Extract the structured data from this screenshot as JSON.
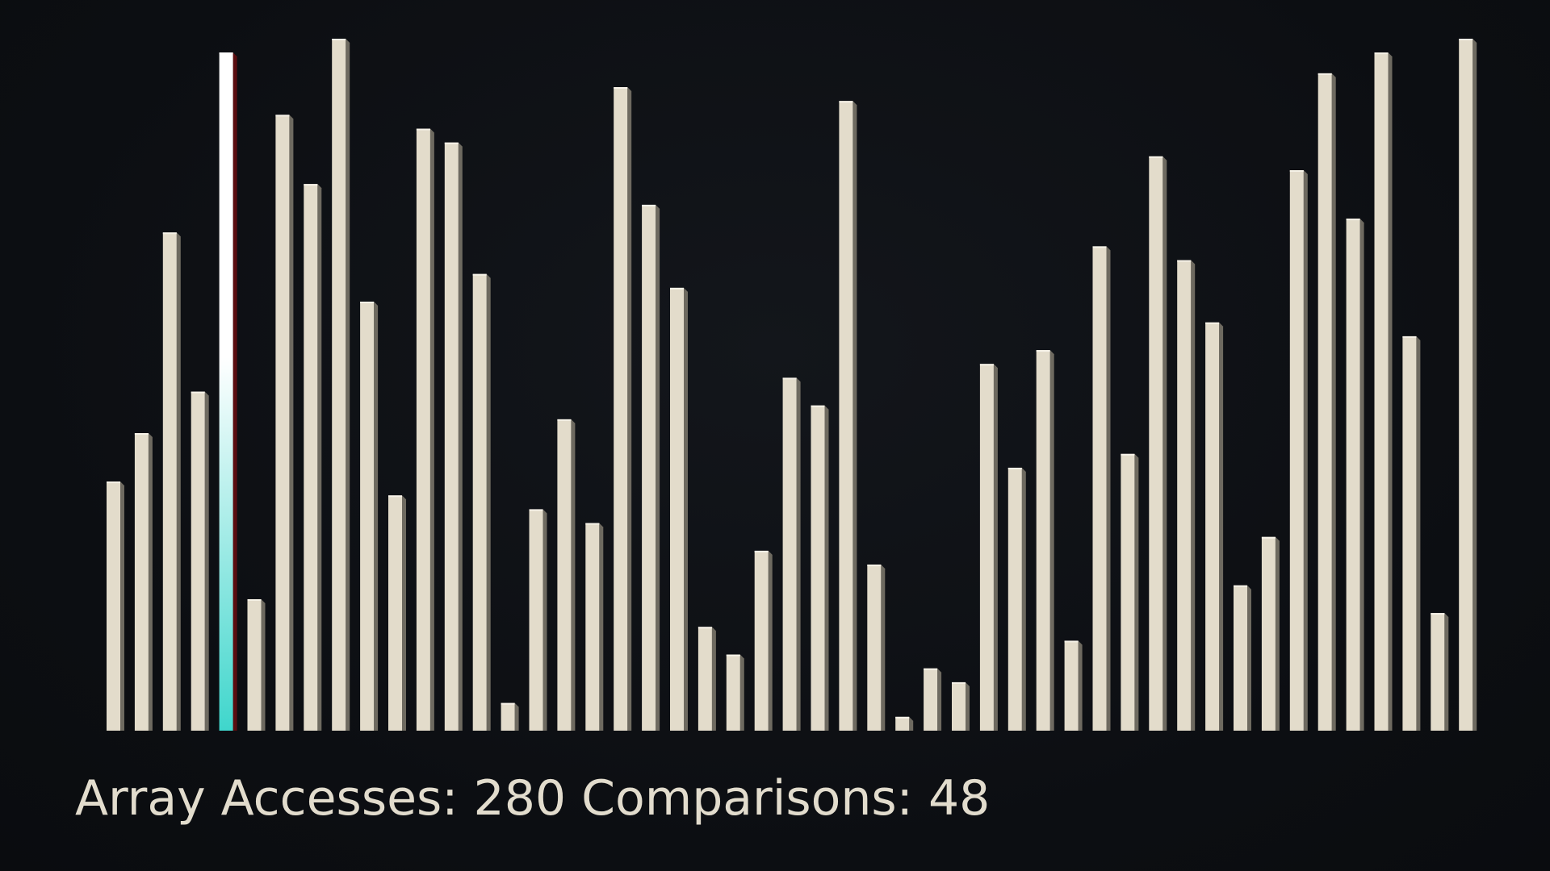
{
  "colors": {
    "background": "#0e1014",
    "bar_front": "#e3dccb",
    "bar_side": "#6e6a60",
    "bar_top": "#f6f2e8",
    "highlight_top": "#ffffff",
    "highlight_bottom": "#3fd6cc",
    "highlight_side": "#5a0d10",
    "text": "#e2dccd"
  },
  "stats": {
    "accesses_label": "Array Accesses:",
    "accesses_value": "280",
    "comparisons_label": "Comparisons:",
    "comparisons_value": "48"
  },
  "chart_data": {
    "type": "bar",
    "title": "",
    "xlabel": "",
    "ylabel": "",
    "ylim": [
      0,
      100
    ],
    "grid": false,
    "legend": "none",
    "highlighted_index": 4,
    "values": [
      36,
      43,
      72,
      49,
      98,
      19,
      89,
      79,
      100,
      62,
      34,
      87,
      85,
      66,
      4,
      32,
      45,
      30,
      93,
      76,
      64,
      15,
      11,
      26,
      51,
      47,
      91,
      24,
      2,
      9,
      7,
      53,
      38,
      55,
      13,
      70,
      40,
      83,
      68,
      59,
      21,
      28,
      81,
      95,
      74,
      98,
      57,
      17,
      100
    ]
  }
}
